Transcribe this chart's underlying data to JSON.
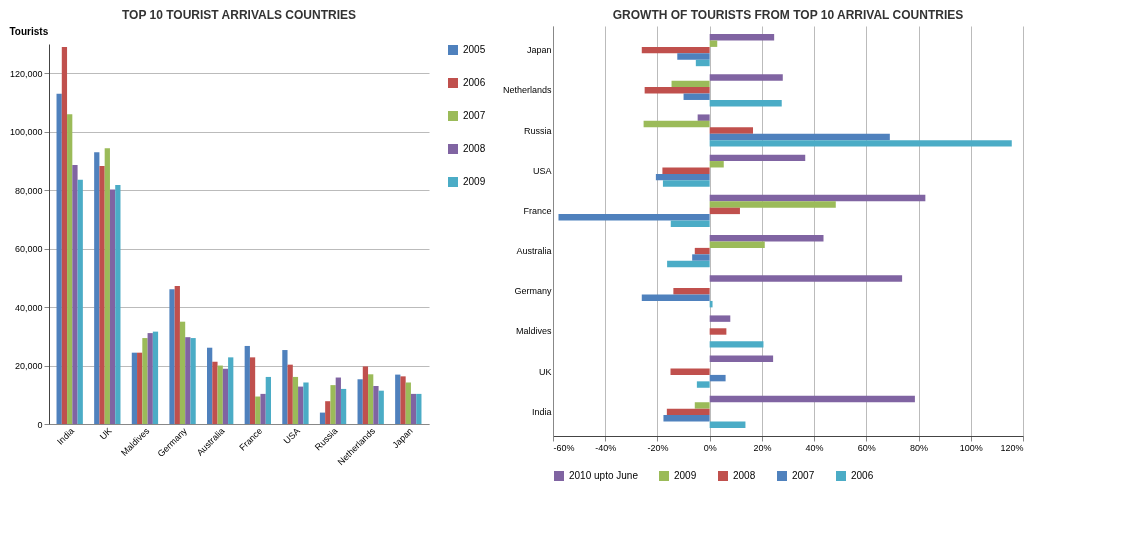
{
  "chart_data": [
    {
      "type": "bar",
      "title": "TOP 10 TOURIST ARRIVALS COUNTRIES",
      "ylabel": "Tourists",
      "categories": [
        "India",
        "UK",
        "Maldives",
        "Germany",
        "Australia",
        "France",
        "USA",
        "Russia",
        "Netherlands",
        "Japan"
      ],
      "series": [
        {
          "name": "2005",
          "color": "#4f81bd",
          "values": [
            113000,
            93000,
            24400,
            46100,
            26100,
            26700,
            25300,
            3900,
            15300,
            16900
          ]
        },
        {
          "name": "2006",
          "color": "#c0504d",
          "values": [
            129000,
            88300,
            24400,
            47200,
            21300,
            22800,
            20300,
            7800,
            19700,
            16300
          ]
        },
        {
          "name": "2007",
          "color": "#9bbb59",
          "values": [
            106000,
            94300,
            29400,
            35000,
            20000,
            9400,
            16100,
            13300,
            17000,
            14200
          ]
        },
        {
          "name": "2008",
          "color": "#8064a2",
          "values": [
            88600,
            80200,
            31100,
            29700,
            18900,
            10300,
            12800,
            15900,
            13000,
            10300
          ]
        },
        {
          "name": "2009",
          "color": "#4bacc6",
          "values": [
            83600,
            81800,
            31600,
            29400,
            22800,
            16100,
            14200,
            12000,
            11400,
            10300
          ]
        }
      ],
      "ylim": [
        0,
        130000
      ],
      "yticks": [
        0,
        {
          "value": 20000,
          "label": "20,000"
        },
        {
          "value": 40000,
          "label": "40,000"
        },
        {
          "value": 60000,
          "label": "60,000"
        },
        {
          "value": 80000,
          "label": "80,000"
        },
        {
          "value": 100000,
          "label": "100,000"
        },
        {
          "value": 120000,
          "label": "120,000"
        }
      ],
      "grid": "y",
      "legend": "right"
    },
    {
      "type": "bar",
      "title": "GROWTH OF TOURISTS FROM TOP 10 ARRIVAL COUNTRIES",
      "orientation": "horizontal",
      "categories": [
        "Japan",
        "Netherlands",
        "Russia",
        "USA",
        "France",
        "Australia",
        "Germany",
        "Maldives",
        "UK",
        "India"
      ],
      "series": [
        {
          "name": "2010 upto June",
          "color": "#8064a2",
          "values": [
            24.7,
            28,
            -4.6,
            36.6,
            82.6,
            43.6,
            73.7,
            7.9,
            24.3,
            78.6
          ]
        },
        {
          "name": "2009",
          "color": "#9bbb59",
          "values": [
            2.9,
            -14.6,
            -25.3,
            5.4,
            48.3,
            21.1,
            null,
            null,
            null,
            -5.7
          ]
        },
        {
          "name": "2008",
          "color": "#c0504d",
          "values": [
            -26,
            -24.9,
            16.6,
            -18.1,
            11.6,
            -5.7,
            -13.9,
            6.4,
            -15,
            -16.4
          ]
        },
        {
          "name": "2007",
          "color": "#4f81bd",
          "values": [
            -12.4,
            -10,
            69,
            -20.6,
            -57.9,
            -6.7,
            -26,
            null,
            6.1,
            -17.7
          ]
        },
        {
          "name": "2006",
          "color": "#4bacc6",
          "values": [
            -5.3,
            27.6,
            115.7,
            -17.9,
            -14.9,
            -16.3,
            1.1,
            20.6,
            -4.9,
            13.7
          ]
        }
      ],
      "xlim": [
        -60,
        120
      ],
      "xticks": [
        {
          "value": -60,
          "label": "-60%"
        },
        {
          "value": -40,
          "label": "-40%"
        },
        {
          "value": -20,
          "label": "-20%"
        },
        {
          "value": 0,
          "label": "0%"
        },
        {
          "value": 20,
          "label": "20%"
        },
        {
          "value": 40,
          "label": "40%"
        },
        {
          "value": 60,
          "label": "60%"
        },
        {
          "value": 80,
          "label": "80%"
        },
        {
          "value": 100,
          "label": "100%"
        },
        {
          "value": 120,
          "label": "120%"
        }
      ],
      "grid": "x",
      "legend": "bottom"
    }
  ]
}
